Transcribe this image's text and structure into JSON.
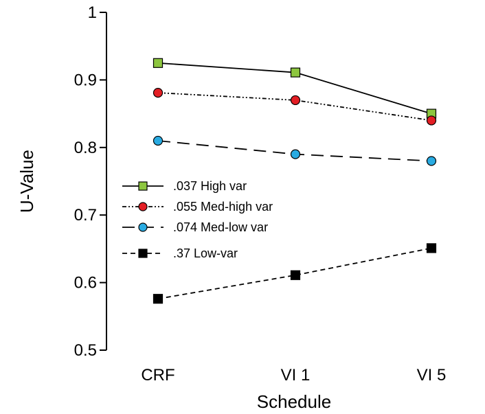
{
  "chart_data": {
    "type": "line",
    "xlabel": "Schedule",
    "ylabel": "U-Value",
    "categories": [
      "CRF",
      "VI 1",
      "VI 5"
    ],
    "ylim": [
      0.5,
      1.0
    ],
    "yticks": [
      0.5,
      0.6,
      0.7,
      0.8,
      0.9,
      1.0
    ],
    "ytick_labels": [
      "0.5",
      "0.6",
      "0.7",
      "0.8",
      "0.9",
      "1"
    ],
    "grid": false,
    "legend_placement": "center-left",
    "series": [
      {
        "name": ".037 High var",
        "values": [
          0.925,
          0.911,
          0.85
        ],
        "marker": "square",
        "color": "#8dc63f",
        "line_style": "solid"
      },
      {
        "name": ".055 Med-high var",
        "values": [
          0.881,
          0.87,
          0.84
        ],
        "marker": "circle",
        "color": "#e31e24",
        "line_style": "dash-dot-dot"
      },
      {
        "name": ".074 Med-low var",
        "values": [
          0.81,
          0.79,
          0.78
        ],
        "marker": "circle",
        "color": "#29abe2",
        "line_style": "long-dash"
      },
      {
        "name": ".37 Low-var",
        "values": [
          0.576,
          0.611,
          0.651
        ],
        "marker": "square",
        "color": "#000000",
        "line_style": "short-dash"
      }
    ]
  }
}
